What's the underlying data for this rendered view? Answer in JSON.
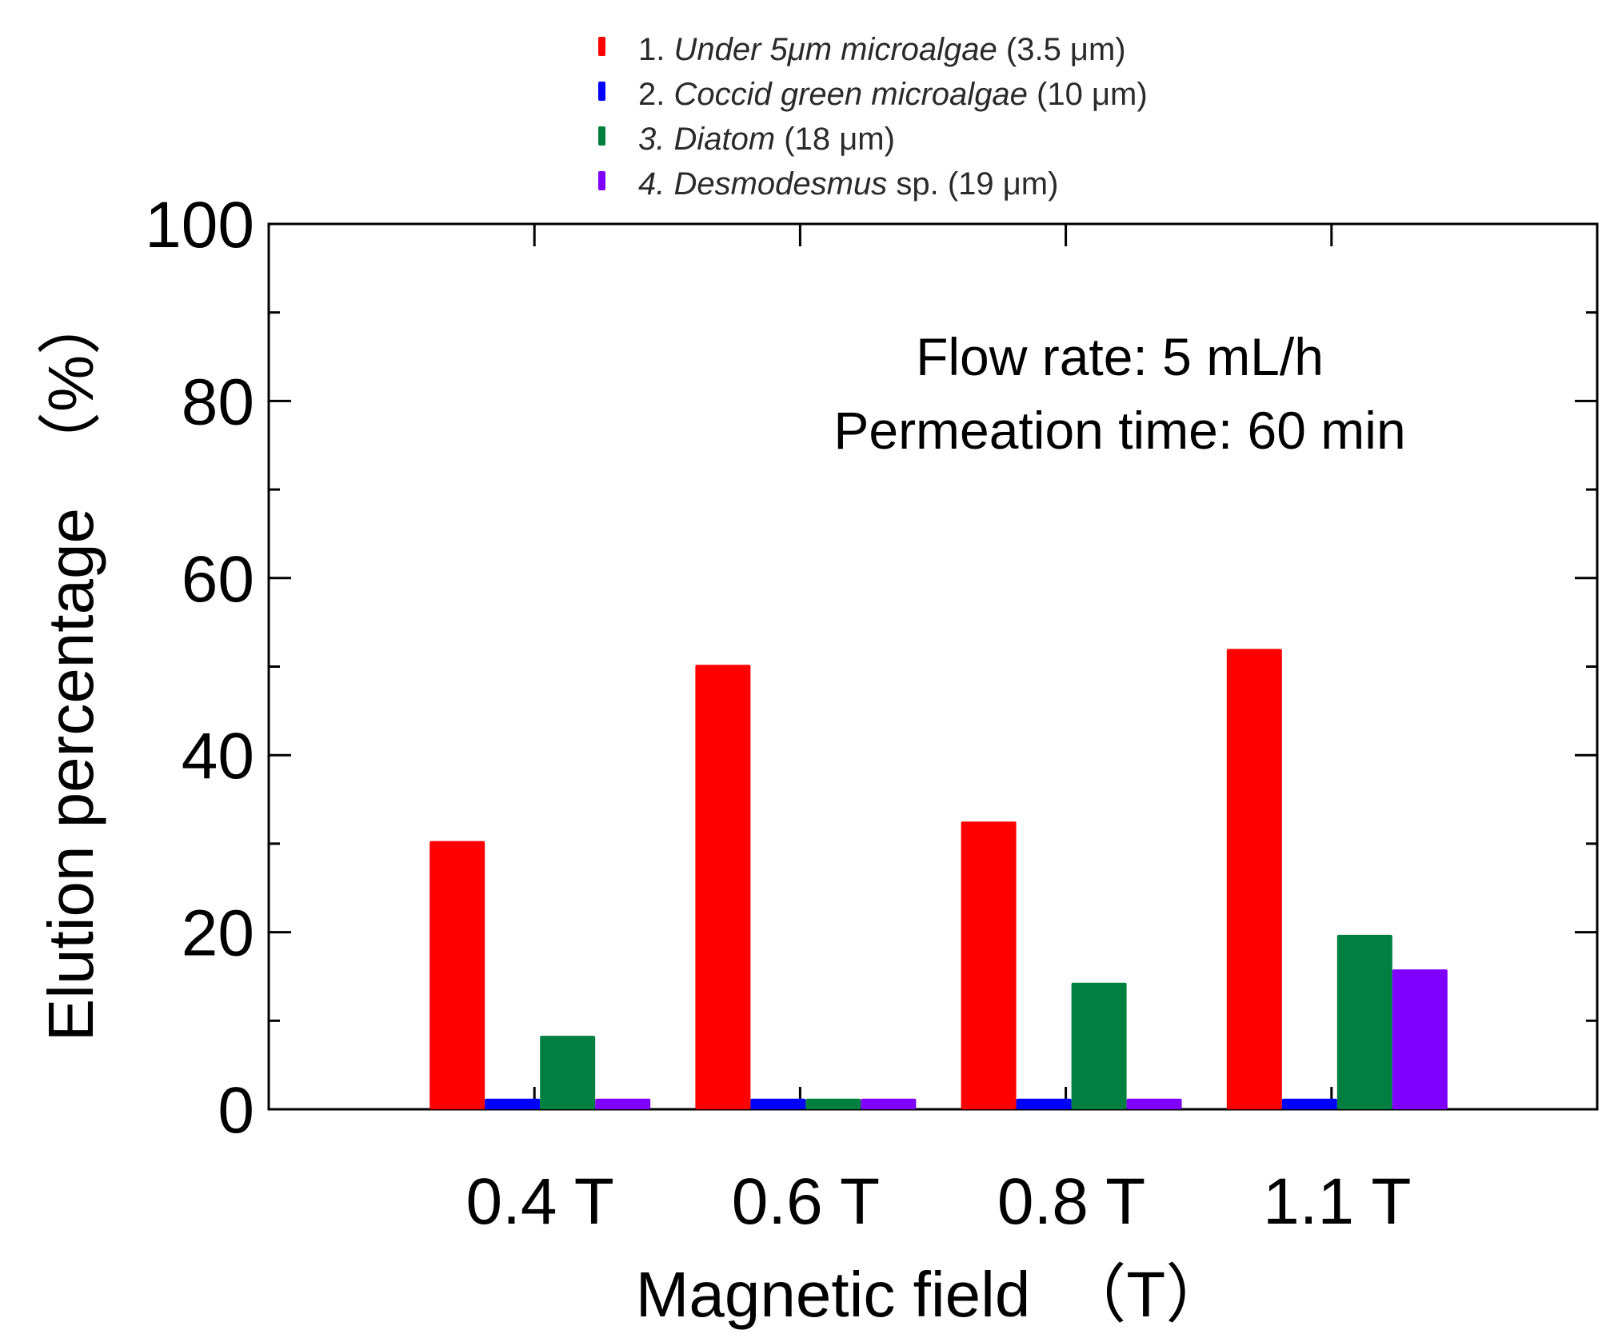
{
  "chart_data": {
    "type": "bar",
    "categories": [
      "0.4 T",
      "0.6 T",
      "0.8 T",
      "1.1 T"
    ],
    "series": [
      {
        "name": "1. Under 5μm microalgae (3.5 μm)",
        "prefix": "1. ",
        "italic": "Under 5μm microalgae",
        "suffix": " (3.5 μm)",
        "color": "#ff0000",
        "values": [
          30.3,
          50.2,
          32.5,
          52.0
        ]
      },
      {
        "name": "2. Coccid green microalgae (10 μm)",
        "prefix": "2. ",
        "italic": "Coccid green microalgae",
        "suffix": " (10 μm)",
        "color": "#0000ff",
        "values": [
          1.2,
          1.2,
          1.2,
          1.2
        ]
      },
      {
        "name": "3. Diatom (18 μm)",
        "prefix": "",
        "italic": "3. Diatom",
        "suffix": " (18 μm)",
        "color": "#008040",
        "values": [
          8.3,
          1.2,
          14.3,
          19.7
        ]
      },
      {
        "name": "4. Desmodesmus sp. (19 μm)",
        "prefix": "",
        "italic": "4. Desmodesmus",
        "suffix": " sp. (19 μm)",
        "color": "#8000ff",
        "values": [
          1.2,
          1.2,
          1.2,
          15.8
        ]
      }
    ],
    "xlabel": "Magnetic field　（T）",
    "ylabel": "Elution percentage　（%）",
    "yticks": [
      "0",
      "20",
      "40",
      "60",
      "80",
      "100"
    ],
    "ylim": [
      0,
      100
    ],
    "annotation": [
      "Flow rate: 5 mL/h",
      "Permeation time: 60 min"
    ]
  }
}
